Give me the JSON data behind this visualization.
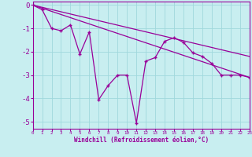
{
  "xlabel": "Windchill (Refroidissement éolien,°C)",
  "ylabel": "",
  "background_color": "#c8eef0",
  "line_color": "#990099",
  "grid_color": "#a0d8dc",
  "xlim": [
    0,
    23
  ],
  "ylim": [
    -5.3,
    0.15
  ],
  "x_ticks": [
    0,
    1,
    2,
    3,
    4,
    5,
    6,
    7,
    8,
    9,
    10,
    11,
    12,
    13,
    14,
    15,
    16,
    17,
    18,
    19,
    20,
    21,
    22,
    23
  ],
  "y_ticks": [
    0,
    -1,
    -2,
    -3,
    -4,
    -5
  ],
  "zigzag_x": [
    0,
    1,
    2,
    3,
    4,
    5,
    6,
    7,
    8,
    9,
    10,
    11,
    12,
    13,
    14,
    15,
    16,
    17,
    18,
    19,
    20,
    21,
    22,
    23
  ],
  "zigzag_y": [
    0.0,
    -0.2,
    -1.0,
    -1.1,
    -0.85,
    -2.1,
    -1.15,
    -4.05,
    -3.45,
    -3.0,
    -3.0,
    -5.05,
    -2.4,
    -2.25,
    -1.55,
    -1.4,
    -1.6,
    -2.05,
    -2.2,
    -2.5,
    -3.0,
    -3.0,
    -3.0,
    -3.1
  ],
  "line1_x": [
    0,
    23
  ],
  "line1_y": [
    0.0,
    -3.1
  ],
  "line2_x": [
    0,
    23
  ],
  "line2_y": [
    0.0,
    -2.2
  ],
  "marker": "+"
}
